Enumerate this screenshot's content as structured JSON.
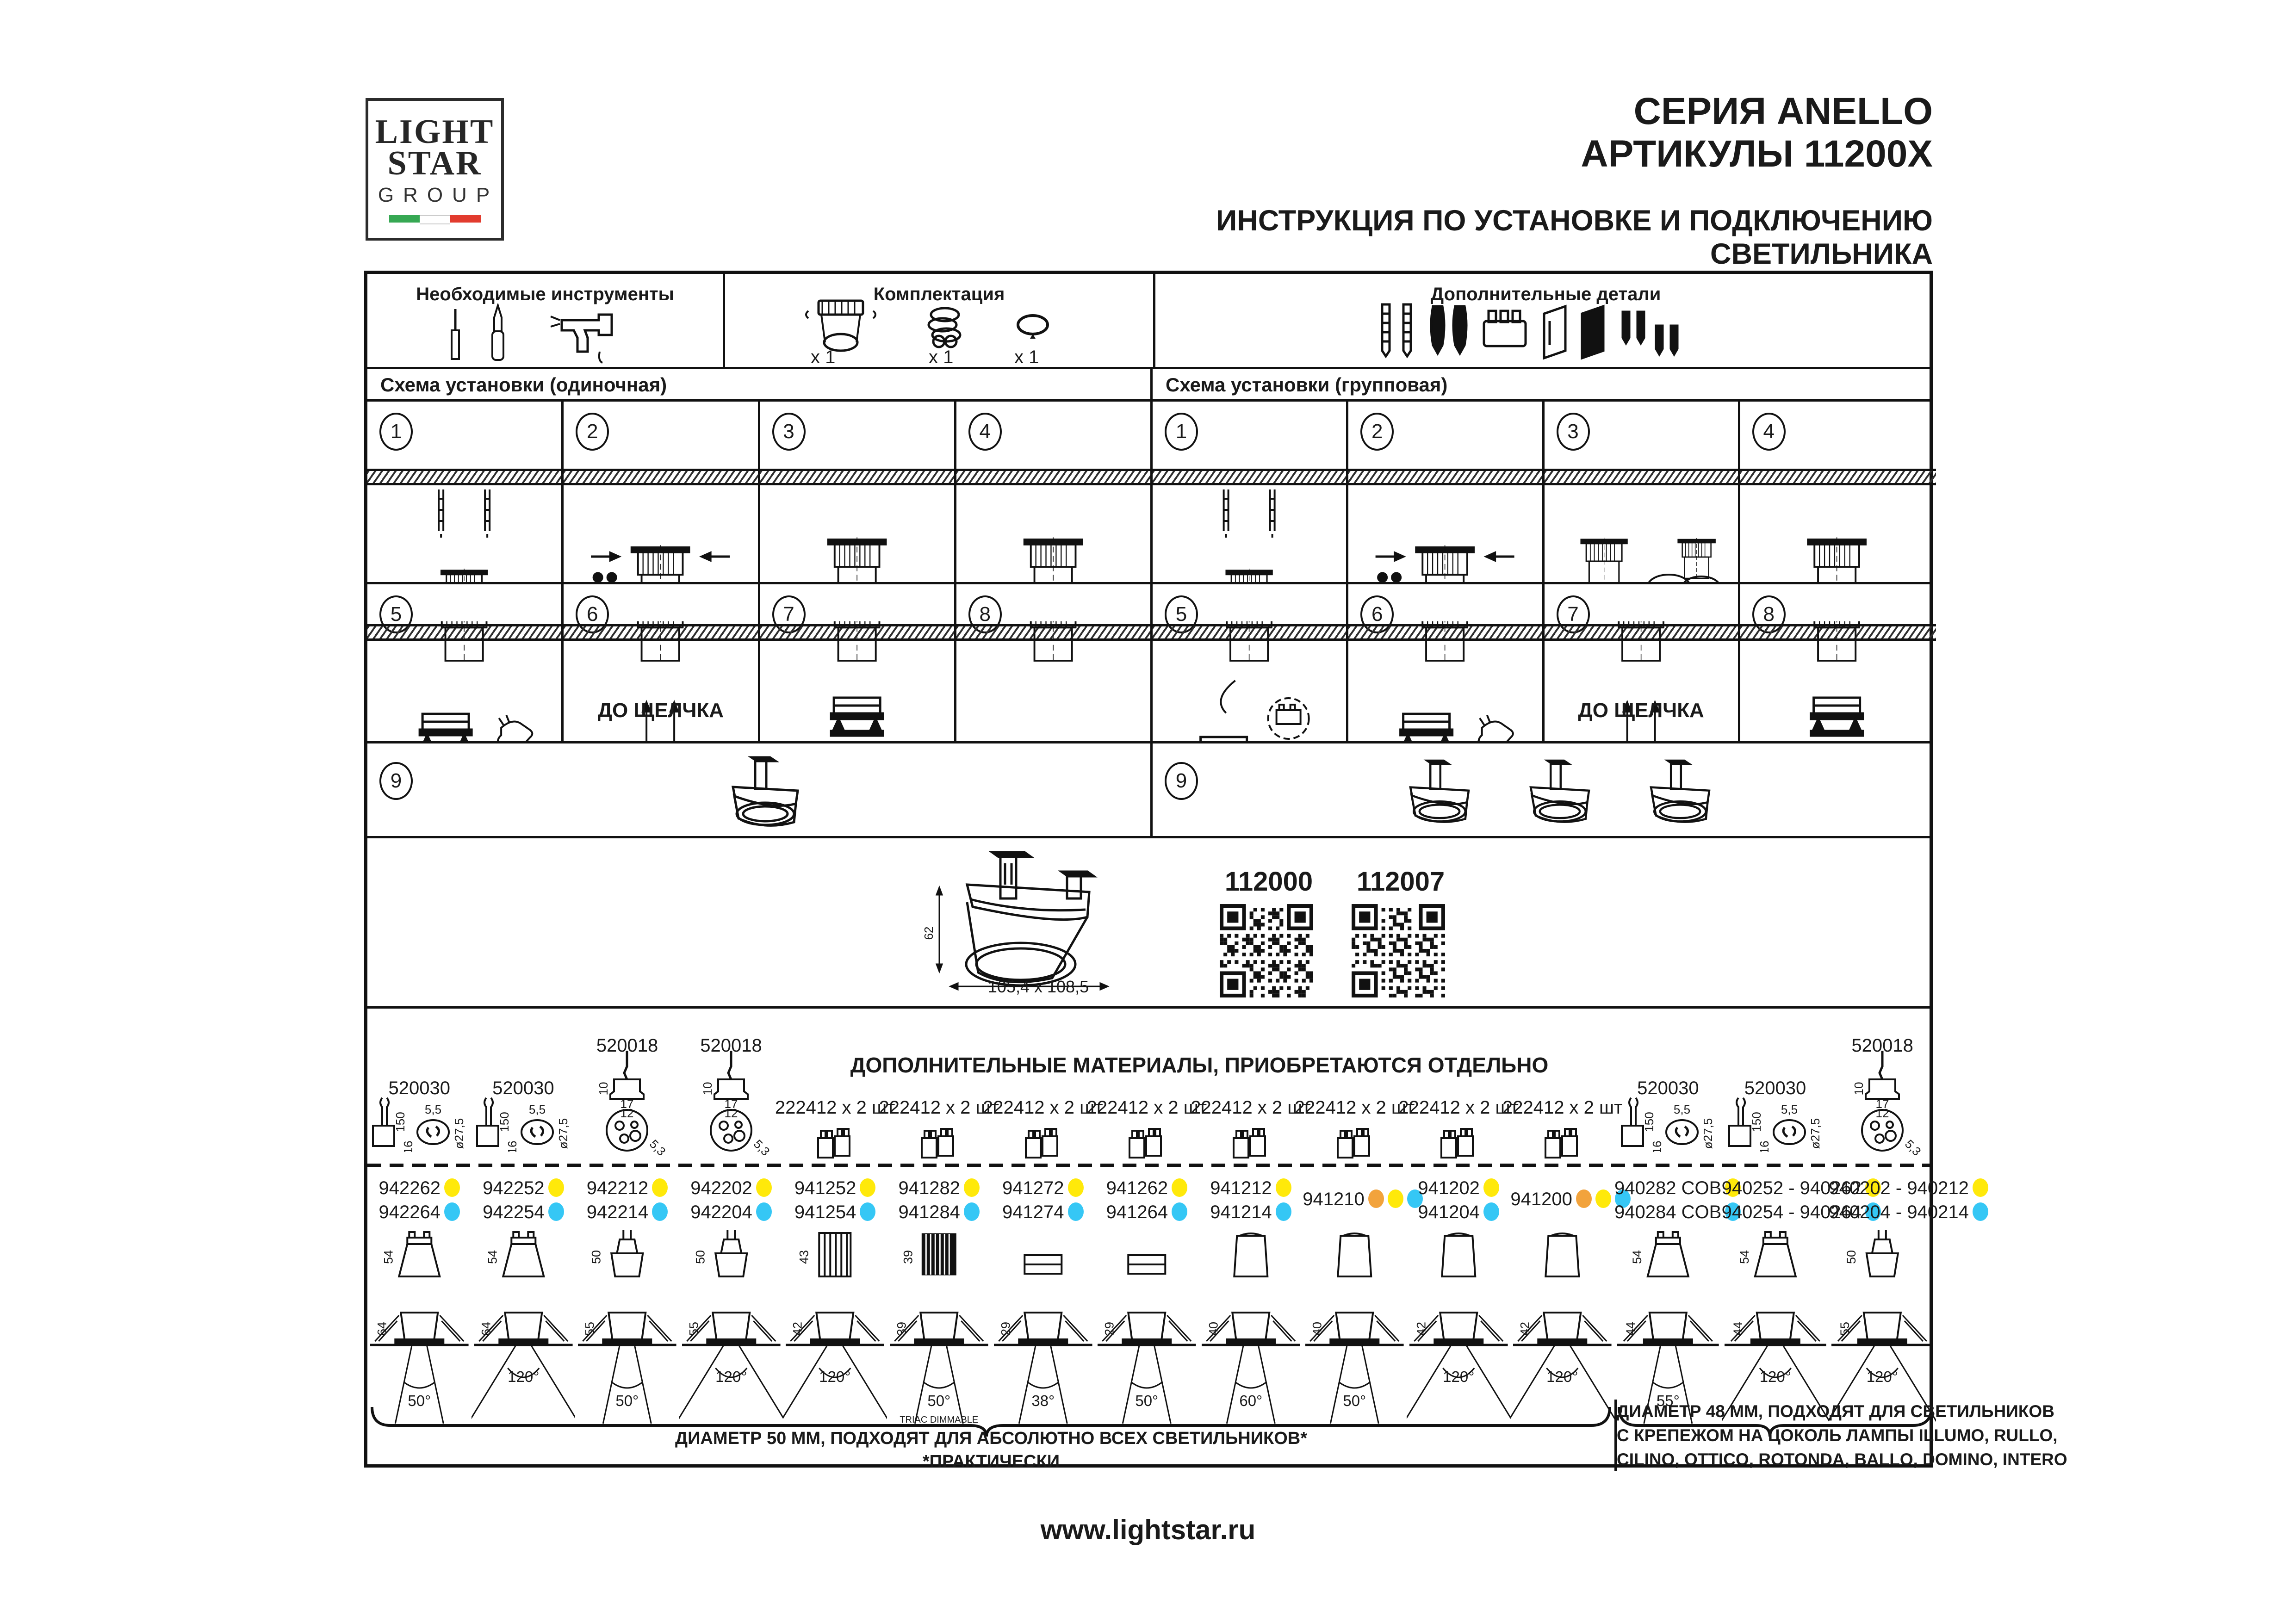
{
  "header": {
    "logo": {
      "line1": "LIGHT",
      "line2": "STAR",
      "line3": "GROUP"
    },
    "series": "СЕРИЯ ANELLO",
    "articles": "АРТИКУЛЫ 11200X",
    "instruction_title": "ИНСТРУКЦИЯ ПО УСТАНОВКЕ И ПОДКЛЮЧЕНИЮ СВЕТИЛЬНИКА"
  },
  "top_row": {
    "tools_title": "Необходимые инструменты",
    "package_title": "Комплектация",
    "extra_parts_title": "Дополнительные детали",
    "package_items": [
      {
        "icon": "luminaire-body-icon",
        "qty": "х 1"
      },
      {
        "icon": "spring-clip-icon",
        "qty": "х 1"
      },
      {
        "icon": "mounting-ring-icon",
        "qty": "х 1"
      }
    ]
  },
  "scheme_single": {
    "title": "Схема установки (одиночная)",
    "row1": [
      {
        "num": "1",
        "illo": "anchors"
      },
      {
        "num": "2",
        "illo": "mount"
      },
      {
        "num": "3",
        "illo": "screwdriver"
      },
      {
        "num": "4",
        "illo": "wiring"
      }
    ],
    "row2": [
      {
        "num": "5",
        "illo": "hand"
      },
      {
        "num": "6",
        "illo": "click",
        "note": "ДО ЩЕЛЧКА"
      },
      {
        "num": "7",
        "illo": "modulering"
      },
      {
        "num": "8",
        "illo": "plain"
      }
    ],
    "row3": {
      "num": "9",
      "illo": "single3d"
    }
  },
  "scheme_group": {
    "title": "Схема установки (групповая)",
    "row1": [
      {
        "num": "1",
        "illo": "anchors"
      },
      {
        "num": "2",
        "illo": "mount"
      },
      {
        "num": "3",
        "illo": "pairwire"
      },
      {
        "num": "4",
        "illo": "screwdriver"
      }
    ],
    "row2": [
      {
        "num": "5",
        "illo": "wireterm"
      },
      {
        "num": "6",
        "illo": "hand"
      },
      {
        "num": "7",
        "illo": "click",
        "note": "ДО ЩЕЛЧКА"
      },
      {
        "num": "8",
        "illo": "modulering"
      }
    ],
    "row3": {
      "num": "9",
      "illo": "triple3d"
    }
  },
  "product": {
    "dim_height": "62",
    "dim_cutout": "105,4 x 108,5",
    "qr": [
      {
        "label": "112000"
      },
      {
        "label": "112007"
      }
    ]
  },
  "accessories": {
    "title": "ДОПОЛНИТЕЛЬНЫЕ МАТЕРИАЛЫ, ПРИОБРЕТАЮТСЯ ОТДЕЛЬНО",
    "left_parts": [
      "520030",
      "520030",
      "520018",
      "520018"
    ],
    "middle_parts": [
      "222412 х 2 шт",
      "222412 х 2 шт",
      "222412 х 2 шт",
      "222412 х 2 шт",
      "222412 х 2 шт",
      "222412 х 2 шт",
      "222412 х 2 шт",
      "222412 х 2 шт"
    ],
    "right_parts": [
      "520030",
      "520030",
      "520018"
    ],
    "part_dims": {
      "p520030": [
        "150",
        "16",
        "5,5",
        "ø27,5"
      ],
      "p520018": [
        "10",
        "17",
        "12",
        "5,3"
      ]
    },
    "columns": [
      {
        "codes": [
          {
            "text": "942262",
            "dots": [
              "yellow"
            ]
          },
          {
            "text": "942264",
            "dots": [
              "cyan"
            ]
          }
        ],
        "angle": "50°",
        "lamp": "gu10",
        "height": "54",
        "depth": "64"
      },
      {
        "codes": [
          {
            "text": "942252",
            "dots": [
              "yellow"
            ]
          },
          {
            "text": "942254",
            "dots": [
              "cyan"
            ]
          }
        ],
        "angle": "120°",
        "lamp": "gu10",
        "height": "54",
        "depth": "64"
      },
      {
        "codes": [
          {
            "text": "942212",
            "dots": [
              "yellow"
            ]
          },
          {
            "text": "942214",
            "dots": [
              "cyan"
            ]
          }
        ],
        "angle": "50°",
        "lamp": "mr16",
        "height": "50",
        "depth": "55"
      },
      {
        "codes": [
          {
            "text": "942202",
            "dots": [
              "yellow"
            ]
          },
          {
            "text": "942204",
            "dots": [
              "cyan"
            ]
          }
        ],
        "angle": "120°",
        "lamp": "mr16",
        "height": "50",
        "depth": "55"
      },
      {
        "codes": [
          {
            "text": "941252",
            "dots": [
              "yellow"
            ]
          },
          {
            "text": "941254",
            "dots": [
              "cyan"
            ]
          }
        ],
        "angle": "120°",
        "lamp": "cyl",
        "height": "43",
        "depth": "42"
      },
      {
        "codes": [
          {
            "text": "941282",
            "dots": [
              "yellow"
            ]
          },
          {
            "text": "941284",
            "dots": [
              "cyan"
            ]
          }
        ],
        "angle": "50°",
        "note": "TRIAC DIMMABLE",
        "lamp": "fin",
        "height": "39",
        "depth": "39"
      },
      {
        "codes": [
          {
            "text": "941272",
            "dots": [
              "yellow"
            ]
          },
          {
            "text": "941274",
            "dots": [
              "cyan"
            ]
          }
        ],
        "angle": "38°",
        "lamp": "flat",
        "height": "",
        "depth": "29"
      },
      {
        "codes": [
          {
            "text": "941262",
            "dots": [
              "yellow"
            ]
          },
          {
            "text": "941264",
            "dots": [
              "cyan"
            ]
          }
        ],
        "angle": "50°",
        "lamp": "flat",
        "height": "",
        "depth": "29"
      },
      {
        "codes": [
          {
            "text": "941212",
            "dots": [
              "yellow"
            ]
          },
          {
            "text": "941214",
            "dots": [
              "cyan"
            ]
          }
        ],
        "angle": "60°",
        "lamp": "dome",
        "height": "",
        "depth": "40"
      },
      {
        "codes": [
          {
            "text": "941210",
            "dots": [
              "orange",
              "yellow",
              "cyan"
            ]
          }
        ],
        "angle": "50°",
        "lamp": "dome",
        "height": "",
        "depth": "40"
      },
      {
        "codes": [
          {
            "text": "941202",
            "dots": [
              "yellow"
            ]
          },
          {
            "text": "941204",
            "dots": [
              "cyan"
            ]
          }
        ],
        "angle": "120°",
        "lamp": "dome",
        "height": "",
        "depth": "42"
      },
      {
        "codes": [
          {
            "text": "941200",
            "dots": [
              "orange",
              "yellow",
              "cyan"
            ]
          }
        ],
        "angle": "120°",
        "lamp": "dome",
        "height": "",
        "depth": "42"
      },
      {
        "codes": [
          {
            "text": "940282 COB",
            "dots": [
              "yellow"
            ]
          },
          {
            "text": "940284 COB",
            "dots": [
              "cyan"
            ]
          }
        ],
        "angle": "55°",
        "lamp": "gu10",
        "height": "54",
        "depth": "44"
      },
      {
        "codes": [
          {
            "text": "940252 - 940262",
            "dots": [
              "yellow"
            ]
          },
          {
            "text": "940254 - 940264",
            "dots": [
              "cyan"
            ]
          }
        ],
        "angle": "120°",
        "lamp": "gu10",
        "height": "54",
        "depth": "44"
      },
      {
        "codes": [
          {
            "text": "940202 - 940212",
            "dots": [
              "yellow"
            ]
          },
          {
            "text": "940204 - 940214",
            "dots": [
              "cyan"
            ]
          }
        ],
        "angle": "120°",
        "lamp": "mr16",
        "height": "50",
        "depth": "55"
      }
    ],
    "bracket_left_line1": "ДИАМЕТР 50 ММ, ПОДХОДЯТ ДЛЯ АБСОЛЮТНО ВСЕХ СВЕТИЛЬНИКОВ*",
    "bracket_left_line2": "*ПРАКТИЧЕСКИ",
    "bracket_right_lines": [
      "ДИАМЕТР 48 ММ, ПОДХОДЯТ ДЛЯ СВЕТИЛЬНИКОВ",
      "С КРЕПЕЖОМ НА ЦОКОЛЬ ЛАМПЫ ILLUMO, RULLO,",
      "CILINO, OTTICO, ROTONDA, BALLO, DOMINO, INTERO"
    ]
  },
  "footer": {
    "url": "www.lightstar.ru"
  },
  "colors": {
    "yellow": "#ffe90a",
    "cyan": "#35c7f5",
    "orange": "#f2a33c",
    "green": "#36a853",
    "white": "#ffffff",
    "red": "#e23b2e",
    "ink": "#1a1a1a"
  }
}
